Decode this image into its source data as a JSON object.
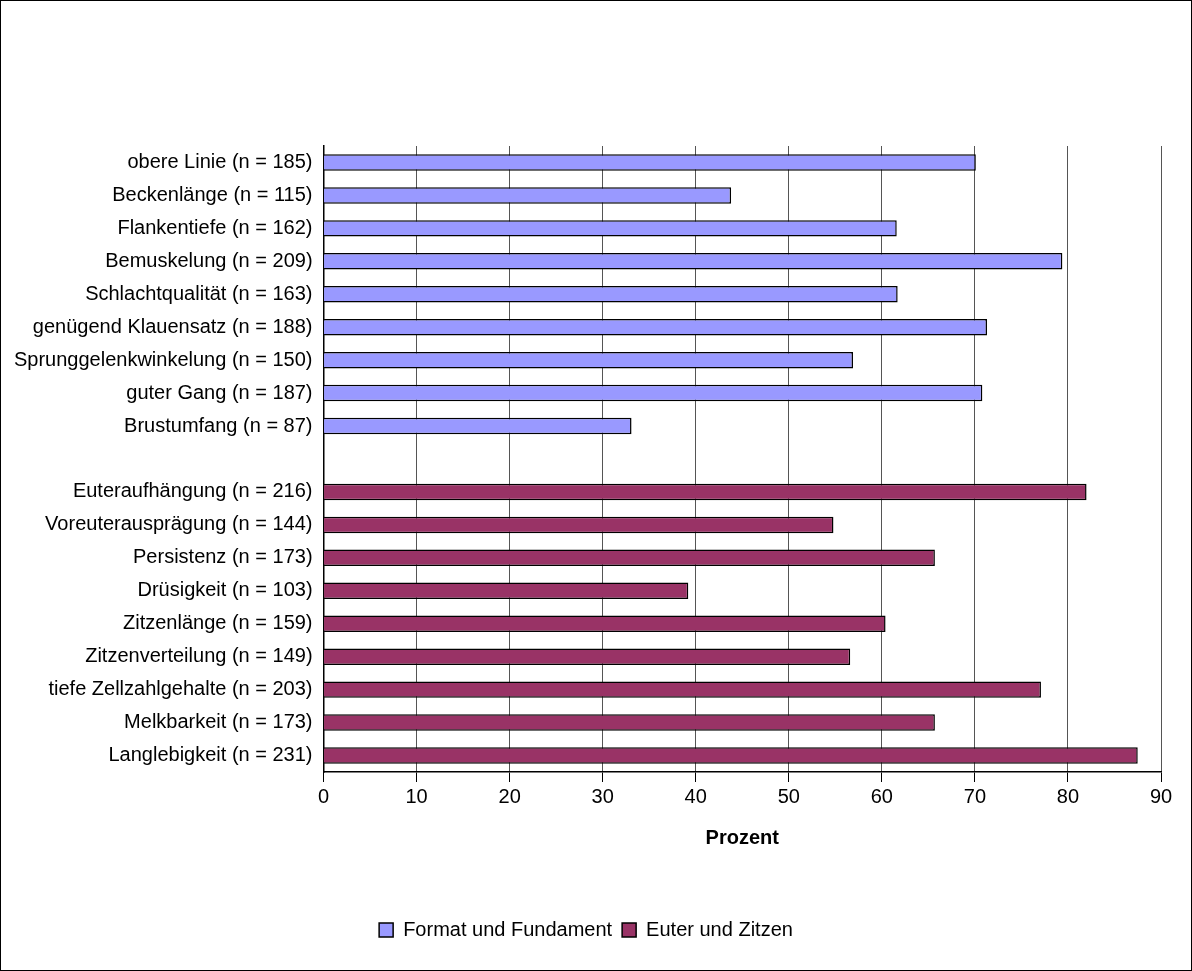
{
  "chart_data": {
    "type": "bar",
    "orientation": "horizontal",
    "xlabel": "Prozent",
    "categories": [
      "obere Linie (n = 185)",
      "Beckenlänge (n = 115)",
      "Flankentiefe (n = 162)",
      "Bemuskelung (n = 209)",
      "Schlachtqualität (n = 163)",
      "genügend Klauensatz (n = 188)",
      "Sprunggelenkwinkelung (n = 150)",
      "guter Gang (n = 187)",
      "Brustumfang (n = 87)",
      null,
      "Euteraufhängung (n = 216)",
      "Voreuterausprägung (n = 144)",
      "Persistenz (n = 173)",
      "Drüsigkeit (n = 103)",
      "Zitzenlänge (n = 159)",
      "Zitzenverteilung (n = 149)",
      "tiefe Zellzahlgehalte (n = 203)",
      "Melkbarkeit (n = 173)",
      "Langlebigkeit (n = 231)"
    ],
    "series": [
      {
        "name": "Format und Fundament",
        "color": "#9999ff",
        "values": [
          70.1,
          43.8,
          61.6,
          79.4,
          61.7,
          71.3,
          56.9,
          70.8,
          33.1,
          null,
          null,
          null,
          null,
          null,
          null,
          null,
          null,
          null,
          null
        ]
      },
      {
        "name": "Euter und Zitzen",
        "color": "#993366",
        "values": [
          null,
          null,
          null,
          null,
          null,
          null,
          null,
          null,
          null,
          null,
          82.0,
          54.8,
          65.7,
          39.2,
          60.4,
          56.6,
          77.1,
          65.7,
          87.5
        ]
      }
    ],
    "xlim": [
      0,
      90
    ],
    "xticks": [
      0,
      10,
      20,
      30,
      40,
      50,
      60,
      70,
      80,
      90
    ],
    "grid": "x",
    "legend": "bottom"
  }
}
